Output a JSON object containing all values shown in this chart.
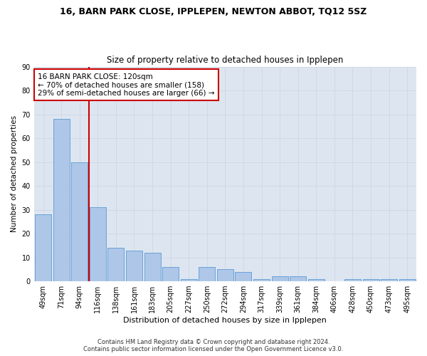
{
  "title": "16, BARN PARK CLOSE, IPPLEPEN, NEWTON ABBOT, TQ12 5SZ",
  "subtitle": "Size of property relative to detached houses in Ipplepen",
  "xlabel": "Distribution of detached houses by size in Ipplepen",
  "ylabel": "Number of detached properties",
  "categories": [
    "49sqm",
    "71sqm",
    "94sqm",
    "116sqm",
    "138sqm",
    "161sqm",
    "183sqm",
    "205sqm",
    "227sqm",
    "250sqm",
    "272sqm",
    "294sqm",
    "317sqm",
    "339sqm",
    "361sqm",
    "384sqm",
    "406sqm",
    "428sqm",
    "450sqm",
    "473sqm",
    "495sqm"
  ],
  "values": [
    28,
    68,
    50,
    31,
    14,
    13,
    12,
    6,
    1,
    6,
    5,
    4,
    1,
    2,
    2,
    1,
    0,
    1,
    1,
    1,
    1
  ],
  "bar_color": "#aec6e8",
  "bar_edge_color": "#5b9bd5",
  "annotation_line1": "16 BARN PARK CLOSE: 120sqm",
  "annotation_line2": "← 70% of detached houses are smaller (158)",
  "annotation_line3": "29% of semi-detached houses are larger (66) →",
  "annotation_box_color": "#ffffff",
  "annotation_box_edge_color": "#cc0000",
  "redline_color": "#cc0000",
  "grid_color": "#d0d8e4",
  "background_color": "#dde6f0",
  "ylim": [
    0,
    90
  ],
  "yticks": [
    0,
    10,
    20,
    30,
    40,
    50,
    60,
    70,
    80,
    90
  ],
  "footer_line1": "Contains HM Land Registry data © Crown copyright and database right 2024.",
  "footer_line2": "Contains public sector information licensed under the Open Government Licence v3.0."
}
